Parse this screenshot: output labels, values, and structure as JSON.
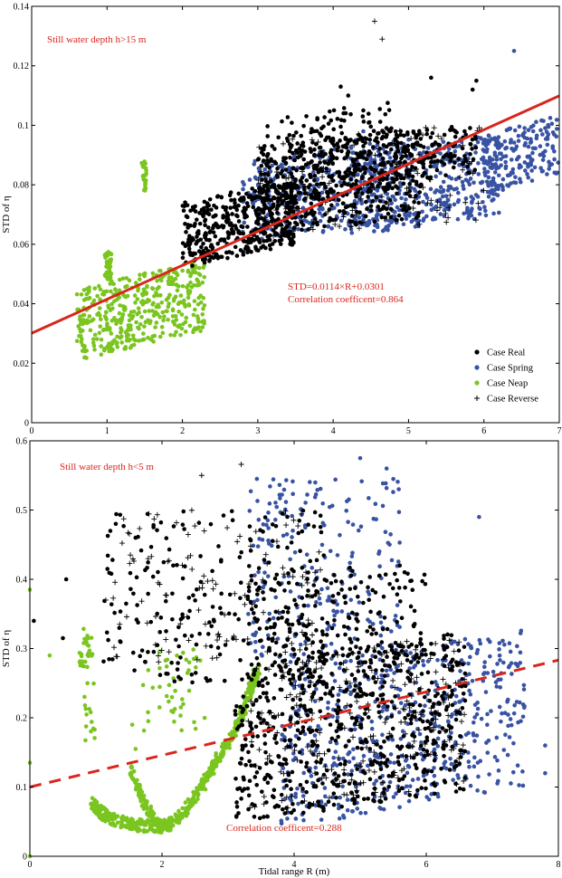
{
  "chart_data": [
    {
      "type": "scatter",
      "title": "",
      "xlabel": "",
      "ylabel": "STD of η",
      "xlim": [
        0,
        7
      ],
      "ylim": [
        0,
        0.14
      ],
      "xticks": [
        "0",
        "1",
        "2",
        "3",
        "4",
        "5",
        "6",
        "7"
      ],
      "yticks": [
        "0",
        "0.02",
        "0.04",
        "0.06",
        "0.08",
        "0.1",
        "0.12",
        "0.14"
      ],
      "annotations": {
        "depth": "Still water depth h>15 m",
        "equation": "STD=0.0114×R+0.0301",
        "correlation": "Correlation coefficent=0.864"
      },
      "legend_position": "bottom-right",
      "regression": {
        "slope": 0.0114,
        "intercept": 0.0301,
        "style": "solid",
        "color": "#d9261c"
      },
      "series": [
        {
          "name": "Case Real",
          "color": "#000000",
          "marker": "dot",
          "clusters": [
            {
              "x": [
                2.0,
                3.5
              ],
              "y": [
                0.056,
                0.078
              ],
              "n": 420,
              "trend": 0.008
            },
            {
              "x": [
                3.0,
                5.2
              ],
              "y": [
                0.066,
                0.096
              ],
              "n": 420,
              "trend": 0.006
            },
            {
              "x": [
                3.0,
                4.8
              ],
              "y": [
                0.075,
                0.105
              ],
              "n": 200,
              "trend": 0.006
            },
            {
              "x": [
                4.8,
                5.9
              ],
              "y": [
                0.082,
                0.1
              ],
              "n": 120,
              "trend": 0.004
            }
          ],
          "points": [
            [
              4.1,
              0.113
            ],
            [
              4.2,
              0.11
            ],
            [
              5.3,
              0.116
            ],
            [
              5.9,
              0.115
            ],
            [
              5.85,
              0.112
            ],
            [
              4.4,
              0.105
            ]
          ]
        },
        {
          "name": "Case Spring",
          "color": "#3953a4",
          "marker": "dot",
          "clusters": [
            {
              "x": [
                2.8,
                5.0
              ],
              "y": [
                0.064,
                0.092
              ],
              "n": 350,
              "trend": 0.007
            },
            {
              "x": [
                4.2,
                6.2
              ],
              "y": [
                0.066,
                0.094
              ],
              "n": 380,
              "trend": 0.006
            },
            {
              "x": [
                6.0,
                7.0
              ],
              "y": [
                0.08,
                0.1
              ],
              "n": 180,
              "trend": 0.007
            }
          ],
          "points": [
            [
              6.4,
              0.125
            ],
            [
              4.3,
              0.095
            ],
            [
              4.4,
              0.098
            ]
          ]
        },
        {
          "name": "Case Neap",
          "color": "#7ac51f",
          "marker": "dot",
          "clusters": [
            {
              "x": [
                0.6,
                2.3
              ],
              "y": [
                0.026,
                0.05
              ],
              "n": 420,
              "trend": 0.01
            },
            {
              "x": [
                0.97,
                1.06
              ],
              "y": [
                0.048,
                0.058
              ],
              "n": 40,
              "trend": 0
            },
            {
              "x": [
                1.46,
                1.52
              ],
              "y": [
                0.078,
                0.088
              ],
              "n": 25,
              "trend": 0
            }
          ],
          "points": []
        },
        {
          "name": "Case Reverse",
          "color": "#000000",
          "marker": "plus",
          "clusters": [
            {
              "x": [
                3.0,
                6.0
              ],
              "y": [
                0.065,
                0.098
              ],
              "n": 140,
              "trend": 0.006
            }
          ],
          "points": [
            [
              4.55,
              0.135
            ],
            [
              4.65,
              0.129
            ]
          ]
        }
      ]
    },
    {
      "type": "scatter",
      "title": "",
      "xlabel": "Tidal range R (m)",
      "ylabel": "STD of η",
      "xlim": [
        0,
        8
      ],
      "ylim": [
        0,
        0.6
      ],
      "xticks": [
        "0",
        "2",
        "4",
        "6",
        "8"
      ],
      "yticks": [
        "0",
        "0.1",
        "0.2",
        "0.3",
        "0.4",
        "0.5",
        "0.6"
      ],
      "annotations": {
        "depth": "Still water depth h<5 m",
        "correlation": "Correlation coefficent=0.288"
      },
      "regression": {
        "slope": 0.0229,
        "intercept": 0.1,
        "style": "dashed",
        "color": "#d9261c"
      },
      "series": [
        {
          "name": "Case Real",
          "color": "#000000",
          "marker": "dot",
          "clusters": [
            {
              "x": [
                3.1,
                6.6
              ],
              "y": [
                0.07,
                0.3
              ],
              "n": 650,
              "trend": 0.05
            },
            {
              "x": [
                1.1,
                4.5
              ],
              "y": [
                0.25,
                0.5
              ],
              "n": 220,
              "trend": 0
            },
            {
              "x": [
                3.3,
                6.0
              ],
              "y": [
                0.28,
                0.42
              ],
              "n": 200,
              "trend": 0
            }
          ],
          "points": [
            [
              0.06,
              0.34
            ],
            [
              0.5,
              0.315
            ],
            [
              0.55,
              0.4
            ],
            [
              1.3,
              0.48
            ],
            [
              1.6,
              0.46
            ]
          ]
        },
        {
          "name": "Case Spring",
          "color": "#3953a4",
          "marker": "dot",
          "clusters": [
            {
              "x": [
                3.8,
                7.5
              ],
              "y": [
                0.07,
                0.3
              ],
              "n": 520,
              "trend": 0.06
            },
            {
              "x": [
                3.3,
                5.6
              ],
              "y": [
                0.28,
                0.55
              ],
              "n": 220,
              "trend": 0
            }
          ],
          "points": [
            [
              5.0,
              0.575
            ],
            [
              5.4,
              0.56
            ],
            [
              6.8,
              0.49
            ],
            [
              7.8,
              0.12
            ],
            [
              7.8,
              0.16
            ]
          ]
        },
        {
          "name": "Case Neap",
          "color": "#7ac51f",
          "marker": "curve",
          "curves": [
            {
              "x": [
                0.95,
                1.05,
                1.2,
                1.45,
                1.7,
                2.0,
                2.3,
                2.6,
                2.85,
                3.1,
                3.3,
                3.45
              ],
              "y": [
                0.08,
                0.065,
                0.055,
                0.048,
                0.044,
                0.043,
                0.06,
                0.1,
                0.14,
                0.18,
                0.23,
                0.27
              ],
              "n": 500,
              "spread": 0.018
            },
            {
              "x": [
                1.5,
                1.65,
                1.8,
                1.9,
                2.0,
                2.1
              ],
              "y": [
                0.13,
                0.095,
                0.065,
                0.05,
                0.045,
                0.043
              ],
              "n": 150,
              "spread": 0.012
            }
          ],
          "clusters": [
            {
              "x": [
                1.7,
                2.7
              ],
              "y": [
                0.17,
                0.3
              ],
              "n": 45,
              "trend": 0
            },
            {
              "x": [
                0.75,
                0.95
              ],
              "y": [
                0.27,
                0.33
              ],
              "n": 30,
              "trend": 0
            },
            {
              "x": [
                0.8,
                1.0
              ],
              "y": [
                0.16,
                0.25
              ],
              "n": 15,
              "trend": 0
            }
          ],
          "points": [
            [
              0.0,
              0.385
            ],
            [
              0.0,
              0.135
            ],
            [
              0.0,
              0.0
            ],
            [
              0.3,
              0.29
            ],
            [
              1.6,
              0.155
            ],
            [
              1.55,
              0.19
            ]
          ]
        },
        {
          "name": "Case Reverse",
          "color": "#000000",
          "marker": "plus",
          "clusters": [
            {
              "x": [
                3.3,
                6.6
              ],
              "y": [
                0.08,
                0.3
              ],
              "n": 230,
              "trend": 0.05
            },
            {
              "x": [
                1.2,
                4.5
              ],
              "y": [
                0.28,
                0.5
              ],
              "n": 120,
              "trend": 0
            }
          ],
          "points": [
            [
              3.2,
              0.566
            ],
            [
              2.6,
              0.55
            ],
            [
              1.15,
              0.37
            ],
            [
              6.5,
              0.21
            ]
          ]
        }
      ]
    }
  ]
}
